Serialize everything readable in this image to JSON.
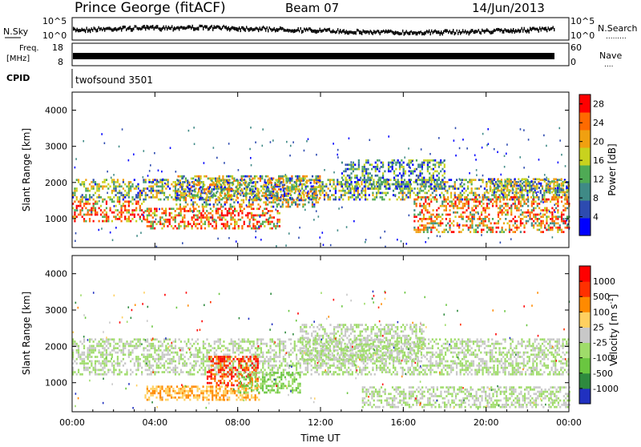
{
  "header": {
    "station": "Prince George (fitACF)",
    "beam": "Beam 07",
    "date": "14/Jun/2013"
  },
  "strips": {
    "nsky_label": "N.Sky",
    "nsearch_label": "N.Search",
    "nsearch_dots": ".........",
    "sky_tick_top": "10^5",
    "sky_tick_bottom": "10^0",
    "freq_label_top": "Freq.",
    "freq_label_unit": "[MHz]",
    "freq_tick_top": "18",
    "freq_tick_bottom": "8",
    "nave_label": "Nave",
    "nave_dots": "....",
    "nave_tick_top": "60",
    "nave_tick_bottom": "0",
    "cpid_label": "CPID",
    "cpid_value": "twofsound 3501"
  },
  "chart_data": [
    {
      "type": "heatmap",
      "panel": "power",
      "ylabel": "Slant Range [km]",
      "yticks": [
        "1000",
        "2000",
        "3000",
        "4000"
      ],
      "ylim": [
        200,
        4500
      ],
      "colorbar": {
        "label": "Power [dB]",
        "ticks": [
          "4",
          "8",
          "12",
          "16",
          "20",
          "24",
          "28"
        ],
        "range": [
          0,
          30
        ],
        "colors": [
          "#0000ff",
          "#2d4bb0",
          "#3f8a86",
          "#4faa55",
          "#c8d21e",
          "#f0a010",
          "#ff6a00",
          "#ff0000"
        ]
      }
    },
    {
      "type": "heatmap",
      "panel": "velocity",
      "ylabel": "Slant Range [km]",
      "yticks": [
        "1000",
        "2000",
        "3000",
        "4000"
      ],
      "ylim": [
        200,
        4500
      ],
      "colorbar": {
        "label": "Velocity [m s",
        "label_superscript": "-1",
        "label_close": "]",
        "ticks": [
          "1000",
          "500",
          "100",
          "25",
          "-25",
          "-100",
          "-500",
          "-1000"
        ],
        "colors": [
          "#2030c0",
          "#2e8a3e",
          "#6ac640",
          "#9fdc6a",
          "#c8c8c8",
          "#ffd060",
          "#ff8a00",
          "#ff3000",
          "#ff0000"
        ]
      }
    }
  ],
  "xaxis": {
    "label": "Time UT",
    "ticks": [
      "00:00",
      "04:00",
      "08:00",
      "12:00",
      "16:00",
      "20:00",
      "00:00"
    ],
    "range_hours": [
      0,
      24
    ]
  }
}
